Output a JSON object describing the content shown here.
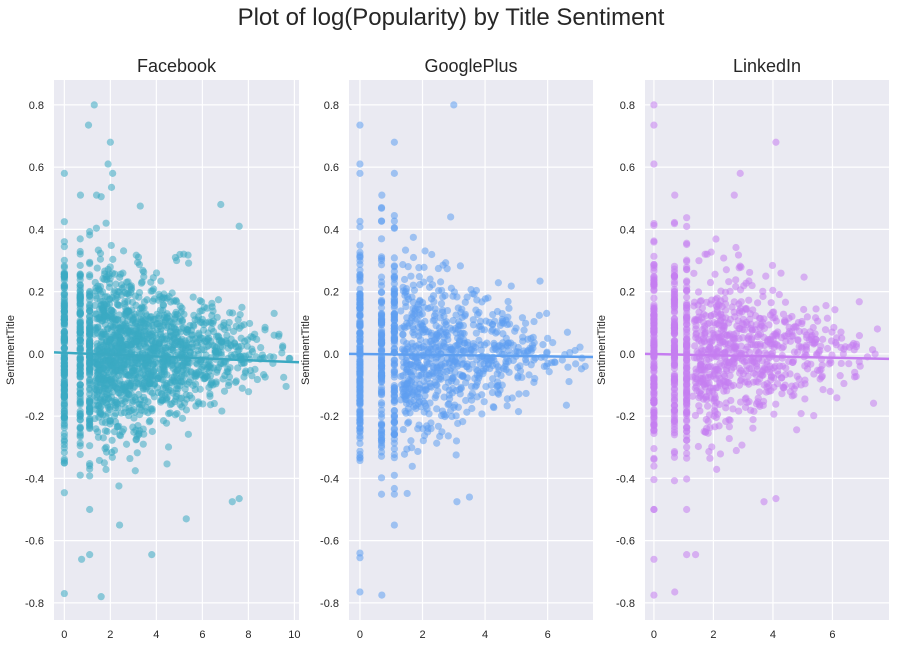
{
  "chart_data": {
    "type": "scatter",
    "title": "Plot of log(Popularity) by Title Sentiment",
    "panels": [
      {
        "title": "Facebook",
        "ylabel": "SentimentTitle",
        "xlabel": "",
        "color": "#3ba9c2",
        "xlim": [
          -0.45,
          10.2
        ],
        "ylim": [
          -0.855,
          0.88
        ],
        "xticks": [
          0,
          2,
          4,
          6,
          8,
          10
        ],
        "yticks": [
          -0.8,
          -0.6,
          -0.4,
          -0.2,
          0.0,
          0.2,
          0.4,
          0.6,
          0.8
        ],
        "xmax_data": 9.8,
        "regression": {
          "x": [
            -0.45,
            10.2
          ],
          "y": [
            0.005,
            -0.027
          ]
        },
        "outliers": [
          [
            1.3,
            0.8
          ],
          [
            1.05,
            0.735
          ],
          [
            2.0,
            0.68
          ],
          [
            1.9,
            0.61
          ],
          [
            2.1,
            0.58
          ],
          [
            2.05,
            0.535
          ],
          [
            1.4,
            0.51
          ],
          [
            1.6,
            0.505
          ],
          [
            0,
            0.58
          ],
          [
            0.7,
            0.51
          ],
          [
            3.3,
            0.475
          ],
          [
            6.8,
            0.48
          ],
          [
            7.6,
            0.41
          ],
          [
            0,
            -0.77
          ],
          [
            1.6,
            -0.78
          ],
          [
            0.75,
            -0.66
          ],
          [
            1.1,
            -0.645
          ],
          [
            3.8,
            -0.645
          ],
          [
            2.4,
            -0.55
          ],
          [
            5.3,
            -0.53
          ],
          [
            7.6,
            -0.465
          ],
          [
            7.3,
            -0.475
          ]
        ]
      },
      {
        "title": "GooglePlus",
        "ylabel": "SentimentTitle",
        "xlabel": "",
        "color": "#5e9ff0",
        "xlim": [
          -0.35,
          7.45
        ],
        "ylim": [
          -0.855,
          0.88
        ],
        "xticks": [
          0,
          2,
          4,
          6
        ],
        "yticks": [
          -0.8,
          -0.6,
          -0.4,
          -0.2,
          0.0,
          0.2,
          0.4,
          0.6,
          0.8
        ],
        "xmax_data": 7.2,
        "regression": {
          "x": [
            -0.35,
            7.45
          ],
          "y": [
            0.0,
            -0.01
          ]
        },
        "outliers": [
          [
            3.0,
            0.8
          ],
          [
            0,
            0.735
          ],
          [
            1.1,
            0.68
          ],
          [
            0,
            0.61
          ],
          [
            0,
            0.58
          ],
          [
            1.1,
            0.58
          ],
          [
            0.7,
            0.51
          ],
          [
            2.9,
            0.44
          ],
          [
            6.0,
            0.05
          ],
          [
            7.2,
            -0.04
          ],
          [
            6.6,
            -0.165
          ],
          [
            0,
            -0.64
          ],
          [
            0,
            -0.655
          ],
          [
            0,
            -0.765
          ],
          [
            0.7,
            -0.775
          ],
          [
            1.1,
            -0.55
          ],
          [
            3.1,
            -0.475
          ],
          [
            3.5,
            -0.46
          ]
        ]
      },
      {
        "title": "LinkedIn",
        "ylabel": "SentimentTitle",
        "xlabel": "",
        "color": "#c57df0",
        "xlim": [
          -0.3,
          7.9
        ],
        "ylim": [
          -0.855,
          0.88
        ],
        "xticks": [
          0,
          2,
          4,
          6
        ],
        "yticks": [
          -0.8,
          -0.6,
          -0.4,
          -0.2,
          0.0,
          0.2,
          0.4,
          0.6,
          0.8
        ],
        "xmax_data": 7.6,
        "regression": {
          "x": [
            -0.3,
            7.9
          ],
          "y": [
            0.0,
            -0.016
          ]
        },
        "outliers": [
          [
            0,
            0.8
          ],
          [
            0,
            0.735
          ],
          [
            4.1,
            0.68
          ],
          [
            0,
            0.61
          ],
          [
            2.9,
            0.58
          ],
          [
            0.7,
            0.51
          ],
          [
            2.7,
            0.51
          ],
          [
            0,
            -0.66
          ],
          [
            0,
            -0.775
          ],
          [
            0.7,
            -0.765
          ],
          [
            1.1,
            -0.645
          ],
          [
            1.4,
            -0.645
          ],
          [
            4.1,
            -0.465
          ],
          [
            3.7,
            -0.475
          ]
        ]
      }
    ]
  }
}
